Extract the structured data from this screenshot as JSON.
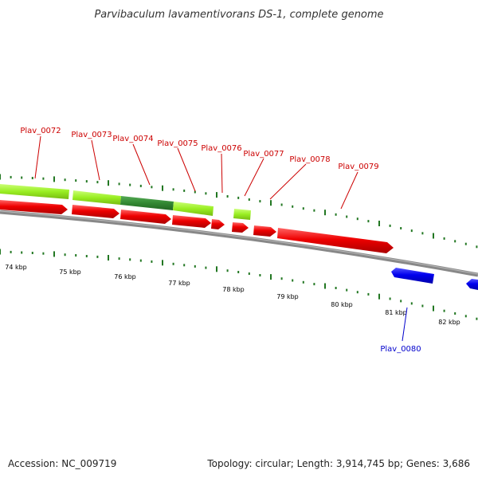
{
  "title": "Parvibaculum lavamentivorans DS-1, complete genome",
  "accession": "Accession: NC_009719",
  "summary": "Topology: circular; Length: 3,914,745 bp; Genes: 3,686",
  "colors": {
    "forward_gene": "#ee0000",
    "reverse_gene": "#0000ee",
    "cds_light": "#99ee22",
    "cds_dark": "#338833",
    "tick": "#227722",
    "backbone": "#888888",
    "label_forward": "#cc0000",
    "label_reverse": "#0000cc"
  },
  "kbp_labels": [
    "74 kbp",
    "75 kbp",
    "76 kbp",
    "77 kbp",
    "78 kbp",
    "79 kbp",
    "80 kbp",
    "81 kbp",
    "82 kbp"
  ],
  "gene_labels": [
    {
      "name": "Plav_0072",
      "strand": "forward"
    },
    {
      "name": "Plav_0073",
      "strand": "forward"
    },
    {
      "name": "Plav_0074",
      "strand": "forward"
    },
    {
      "name": "Plav_0075",
      "strand": "forward"
    },
    {
      "name": "Plav_0076",
      "strand": "forward"
    },
    {
      "name": "Plav_0077",
      "strand": "forward"
    },
    {
      "name": "Plav_0078",
      "strand": "forward"
    },
    {
      "name": "Plav_0079",
      "strand": "forward"
    },
    {
      "name": "Plav_0080",
      "strand": "reverse"
    }
  ]
}
